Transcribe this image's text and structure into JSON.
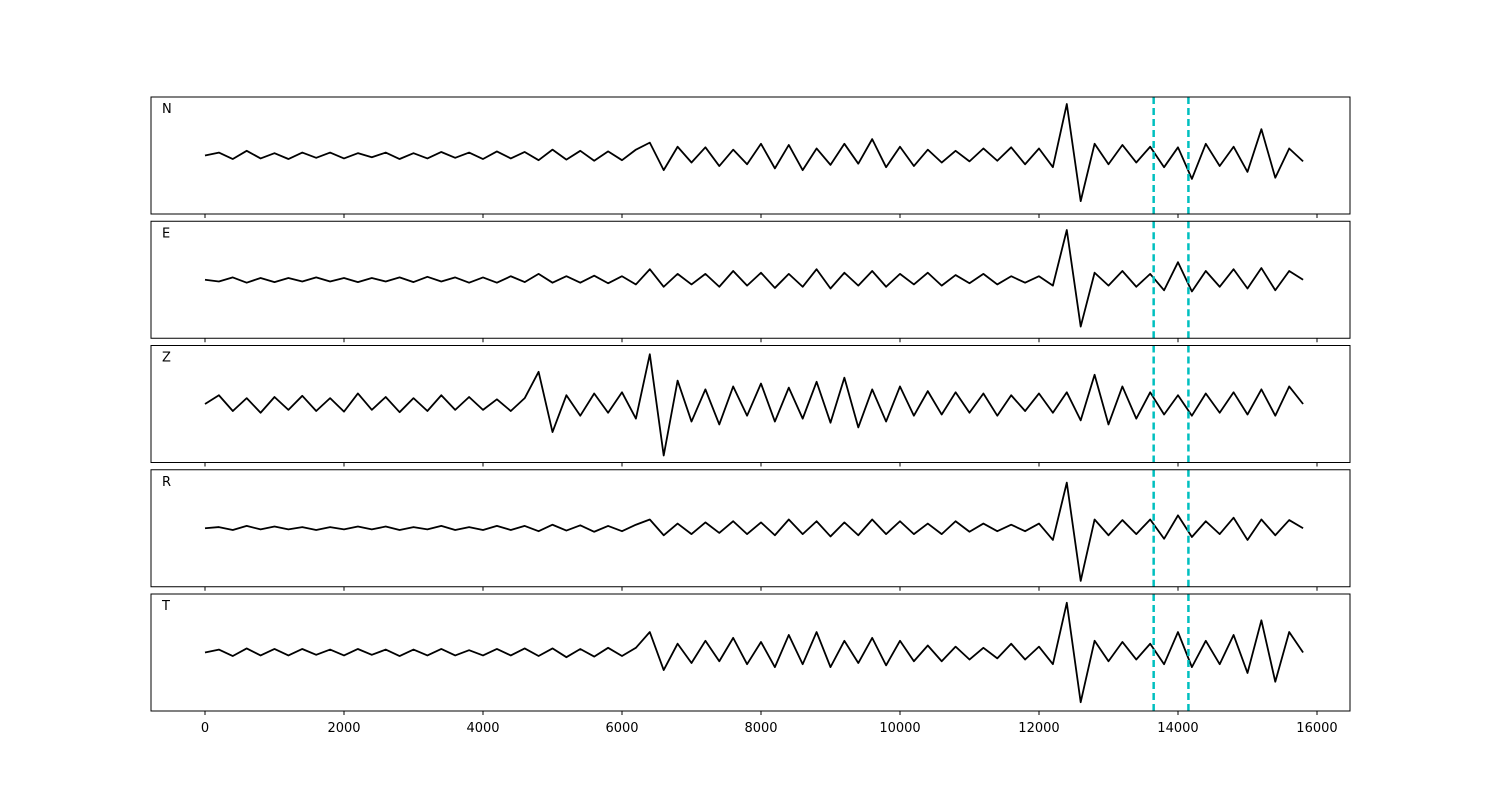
{
  "chart_data": [
    {
      "type": "line",
      "title": "N",
      "color": "#000000",
      "xlim": [
        -777,
        16475
      ],
      "ylim": [
        -1,
        1
      ],
      "xticks": [
        0,
        2000,
        4000,
        6000,
        8000,
        10000,
        12000,
        14000,
        16000
      ],
      "xtick_labels": false,
      "vlines": [
        13650,
        14150
      ],
      "vline_color": "#00bfbf",
      "x": [
        0,
        200,
        400,
        600,
        800,
        1000,
        1200,
        1400,
        1600,
        1800,
        2000,
        2200,
        2400,
        2600,
        2800,
        3000,
        3200,
        3400,
        3600,
        3800,
        4000,
        4200,
        4400,
        4600,
        4800,
        5000,
        5200,
        5400,
        5600,
        5800,
        6000,
        6200,
        6400,
        6600,
        6800,
        7000,
        7200,
        7400,
        7600,
        7800,
        8000,
        8200,
        8400,
        8600,
        8800,
        9000,
        9200,
        9400,
        9600,
        9800,
        10000,
        10200,
        10400,
        10600,
        10800,
        11000,
        11200,
        11400,
        11600,
        11800,
        12000,
        12200,
        12400,
        12600,
        12800,
        13000,
        13200,
        13400,
        13600,
        13800,
        14000,
        14200,
        14400,
        14600,
        14800,
        15000,
        15200,
        15400,
        15600,
        15800
      ],
      "values": [
        0,
        0.05,
        -0.06,
        0.08,
        -0.05,
        0.04,
        -0.06,
        0.05,
        -0.04,
        0.05,
        -0.05,
        0.04,
        -0.03,
        0.05,
        -0.06,
        0.04,
        -0.05,
        0.06,
        -0.04,
        0.05,
        -0.06,
        0.07,
        -0.05,
        0.06,
        -0.08,
        0.1,
        -0.07,
        0.08,
        -0.09,
        0.07,
        -0.08,
        0.1,
        0.22,
        -0.25,
        0.15,
        -0.12,
        0.14,
        -0.18,
        0.1,
        -0.15,
        0.2,
        -0.22,
        0.18,
        -0.25,
        0.12,
        -0.16,
        0.2,
        -0.14,
        0.28,
        -0.2,
        0.15,
        -0.18,
        0.1,
        -0.12,
        0.08,
        -0.1,
        0.12,
        -0.09,
        0.14,
        -0.15,
        0.12,
        -0.2,
        0.88,
        -0.78,
        0.2,
        -0.15,
        0.18,
        -0.12,
        0.15,
        -0.2,
        0.14,
        -0.4,
        0.2,
        -0.18,
        0.15,
        -0.28,
        0.45,
        -0.38,
        0.12,
        -0.1
      ]
    },
    {
      "type": "line",
      "title": "E",
      "color": "#000000",
      "xlim": [
        -777,
        16475
      ],
      "ylim": [
        -1,
        1
      ],
      "xticks": [
        0,
        2000,
        4000,
        6000,
        8000,
        10000,
        12000,
        14000,
        16000
      ],
      "xtick_labels": false,
      "vlines": [
        13650,
        14150
      ],
      "vline_color": "#00bfbf",
      "x": [
        0,
        200,
        400,
        600,
        800,
        1000,
        1200,
        1400,
        1600,
        1800,
        2000,
        2200,
        2400,
        2600,
        2800,
        3000,
        3200,
        3400,
        3600,
        3800,
        4000,
        4200,
        4400,
        4600,
        4800,
        5000,
        5200,
        5400,
        5600,
        5800,
        6000,
        6200,
        6400,
        6600,
        6800,
        7000,
        7200,
        7400,
        7600,
        7800,
        8000,
        8200,
        8400,
        8600,
        8800,
        9000,
        9200,
        9400,
        9600,
        9800,
        10000,
        10200,
        10400,
        10600,
        10800,
        11000,
        11200,
        11400,
        11600,
        11800,
        12000,
        12200,
        12400,
        12600,
        12800,
        13000,
        13200,
        13400,
        13600,
        13800,
        14000,
        14200,
        14400,
        14600,
        14800,
        15000,
        15200,
        15400,
        15600,
        15800
      ],
      "values": [
        0,
        -0.03,
        0.04,
        -0.05,
        0.03,
        -0.04,
        0.03,
        -0.03,
        0.04,
        -0.03,
        0.03,
        -0.04,
        0.03,
        -0.03,
        0.04,
        -0.04,
        0.05,
        -0.03,
        0.04,
        -0.05,
        0.04,
        -0.05,
        0.06,
        -0.04,
        0.1,
        -0.05,
        0.06,
        -0.05,
        0.07,
        -0.06,
        0.06,
        -0.08,
        0.18,
        -0.12,
        0.1,
        -0.08,
        0.1,
        -0.12,
        0.15,
        -0.1,
        0.12,
        -0.14,
        0.1,
        -0.12,
        0.18,
        -0.15,
        0.12,
        -0.1,
        0.15,
        -0.12,
        0.1,
        -0.08,
        0.12,
        -0.1,
        0.08,
        -0.06,
        0.1,
        -0.08,
        0.06,
        -0.05,
        0.06,
        -0.1,
        0.85,
        -0.8,
        0.12,
        -0.1,
        0.15,
        -0.12,
        0.1,
        -0.18,
        0.3,
        -0.2,
        0.15,
        -0.12,
        0.18,
        -0.15,
        0.2,
        -0.18,
        0.15,
        0
      ]
    },
    {
      "type": "line",
      "title": "Z",
      "color": "#000000",
      "xlim": [
        -777,
        16475
      ],
      "ylim": [
        -1,
        1
      ],
      "xticks": [
        0,
        2000,
        4000,
        6000,
        8000,
        10000,
        12000,
        14000,
        16000
      ],
      "xtick_labels": false,
      "vlines": [
        13650,
        14150
      ],
      "vline_color": "#00bfbf",
      "x": [
        0,
        200,
        400,
        600,
        800,
        1000,
        1200,
        1400,
        1600,
        1800,
        2000,
        2200,
        2400,
        2600,
        2800,
        3000,
        3200,
        3400,
        3600,
        3800,
        4000,
        4200,
        4400,
        4600,
        4800,
        5000,
        5200,
        5400,
        5600,
        5800,
        6000,
        6200,
        6400,
        6600,
        6800,
        7000,
        7200,
        7400,
        7600,
        7800,
        8000,
        8200,
        8400,
        8600,
        8800,
        9000,
        9200,
        9400,
        9600,
        9800,
        10000,
        10200,
        10400,
        10600,
        10800,
        11000,
        11200,
        11400,
        11600,
        11800,
        12000,
        12200,
        12400,
        12600,
        12800,
        13000,
        13200,
        13400,
        13600,
        13800,
        14000,
        14200,
        14400,
        14600,
        14800,
        15000,
        15200,
        15400,
        15600,
        15800
      ],
      "values": [
        0,
        0.15,
        -0.12,
        0.1,
        -0.15,
        0.12,
        -0.1,
        0.14,
        -0.12,
        0.1,
        -0.13,
        0.18,
        -0.1,
        0.12,
        -0.14,
        0.1,
        -0.12,
        0.15,
        -0.1,
        0.12,
        -0.1,
        0.08,
        -0.12,
        0.1,
        0.55,
        -0.48,
        0.15,
        -0.2,
        0.18,
        -0.15,
        0.2,
        -0.25,
        0.85,
        -0.88,
        0.4,
        -0.3,
        0.25,
        -0.35,
        0.3,
        -0.2,
        0.35,
        -0.3,
        0.28,
        -0.25,
        0.38,
        -0.32,
        0.45,
        -0.4,
        0.25,
        -0.3,
        0.3,
        -0.2,
        0.22,
        -0.18,
        0.2,
        -0.15,
        0.18,
        -0.2,
        0.15,
        -0.12,
        0.18,
        -0.15,
        0.2,
        -0.28,
        0.5,
        -0.35,
        0.3,
        -0.25,
        0.2,
        -0.18,
        0.15,
        -0.2,
        0.18,
        -0.15,
        0.2,
        -0.18,
        0.25,
        -0.2,
        0.3,
        0
      ]
    },
    {
      "type": "line",
      "title": "R",
      "color": "#000000",
      "xlim": [
        -777,
        16475
      ],
      "ylim": [
        -1,
        1
      ],
      "xticks": [
        0,
        2000,
        4000,
        6000,
        8000,
        10000,
        12000,
        14000,
        16000
      ],
      "xtick_labels": false,
      "vlines": [
        13650,
        14150
      ],
      "vline_color": "#00bfbf",
      "x": [
        0,
        200,
        400,
        600,
        800,
        1000,
        1200,
        1400,
        1600,
        1800,
        2000,
        2200,
        2400,
        2600,
        2800,
        3000,
        3200,
        3400,
        3600,
        3800,
        4000,
        4200,
        4400,
        4600,
        4800,
        5000,
        5200,
        5400,
        5600,
        5800,
        6000,
        6200,
        6400,
        6600,
        6800,
        7000,
        7200,
        7400,
        7600,
        7800,
        8000,
        8200,
        8400,
        8600,
        8800,
        9000,
        9200,
        9400,
        9600,
        9800,
        10000,
        10200,
        10400,
        10600,
        10800,
        11000,
        11200,
        11400,
        11600,
        11800,
        12000,
        12200,
        12400,
        12600,
        12800,
        13000,
        13200,
        13400,
        13600,
        13800,
        14000,
        14200,
        14400,
        14600,
        14800,
        15000,
        15200,
        15400,
        15600,
        15800
      ],
      "values": [
        0,
        0.02,
        -0.03,
        0.04,
        -0.02,
        0.03,
        -0.02,
        0.02,
        -0.03,
        0.02,
        -0.02,
        0.03,
        -0.02,
        0.03,
        -0.03,
        0.02,
        -0.02,
        0.04,
        -0.03,
        0.02,
        -0.03,
        0.04,
        -0.03,
        0.04,
        -0.05,
        0.06,
        -0.04,
        0.05,
        -0.06,
        0.04,
        -0.05,
        0.06,
        0.15,
        -0.12,
        0.08,
        -0.1,
        0.1,
        -0.08,
        0.12,
        -0.1,
        0.1,
        -0.12,
        0.15,
        -0.1,
        0.12,
        -0.14,
        0.1,
        -0.12,
        0.15,
        -0.1,
        0.12,
        -0.1,
        0.08,
        -0.1,
        0.12,
        -0.06,
        0.08,
        -0.05,
        0.06,
        -0.05,
        0.08,
        -0.2,
        0.78,
        -0.9,
        0.15,
        -0.12,
        0.14,
        -0.1,
        0.15,
        -0.18,
        0.22,
        -0.15,
        0.12,
        -0.1,
        0.18,
        -0.2,
        0.15,
        -0.12,
        0.14,
        0
      ]
    },
    {
      "type": "line",
      "title": "T",
      "color": "#000000",
      "xlim": [
        -777,
        16475
      ],
      "ylim": [
        -1,
        1
      ],
      "xticks": [
        0,
        2000,
        4000,
        6000,
        8000,
        10000,
        12000,
        14000,
        16000
      ],
      "xtick_labels": true,
      "vlines": [
        13650,
        14150
      ],
      "vline_color": "#00bfbf",
      "x": [
        0,
        200,
        400,
        600,
        800,
        1000,
        1200,
        1400,
        1600,
        1800,
        2000,
        2200,
        2400,
        2600,
        2800,
        3000,
        3200,
        3400,
        3600,
        3800,
        4000,
        4200,
        4400,
        4600,
        4800,
        5000,
        5200,
        5400,
        5600,
        5800,
        6000,
        6200,
        6400,
        6600,
        6800,
        7000,
        7200,
        7400,
        7600,
        7800,
        8000,
        8200,
        8400,
        8600,
        8800,
        9000,
        9200,
        9400,
        9600,
        9800,
        10000,
        10200,
        10400,
        10600,
        10800,
        11000,
        11200,
        11400,
        11600,
        11800,
        12000,
        12200,
        12400,
        12600,
        12800,
        13000,
        13200,
        13400,
        13600,
        13800,
        14000,
        14200,
        14400,
        14600,
        14800,
        15000,
        15200,
        15400,
        15600,
        15800
      ],
      "values": [
        0,
        0.05,
        -0.06,
        0.07,
        -0.05,
        0.06,
        -0.05,
        0.06,
        -0.04,
        0.05,
        -0.05,
        0.06,
        -0.04,
        0.05,
        -0.06,
        0.05,
        -0.05,
        0.06,
        -0.05,
        0.04,
        -0.05,
        0.06,
        -0.05,
        0.07,
        -0.06,
        0.07,
        -0.08,
        0.06,
        -0.07,
        0.08,
        -0.06,
        0.08,
        0.35,
        -0.3,
        0.15,
        -0.18,
        0.2,
        -0.15,
        0.25,
        -0.2,
        0.18,
        -0.25,
        0.3,
        -0.2,
        0.35,
        -0.25,
        0.2,
        -0.18,
        0.25,
        -0.22,
        0.2,
        -0.15,
        0.12,
        -0.15,
        0.1,
        -0.12,
        0.08,
        -0.1,
        0.15,
        -0.12,
        0.1,
        -0.2,
        0.85,
        -0.85,
        0.2,
        -0.15,
        0.18,
        -0.12,
        0.15,
        -0.2,
        0.35,
        -0.25,
        0.2,
        -0.2,
        0.3,
        -0.35,
        0.55,
        -0.5,
        0.35,
        0
      ]
    }
  ]
}
